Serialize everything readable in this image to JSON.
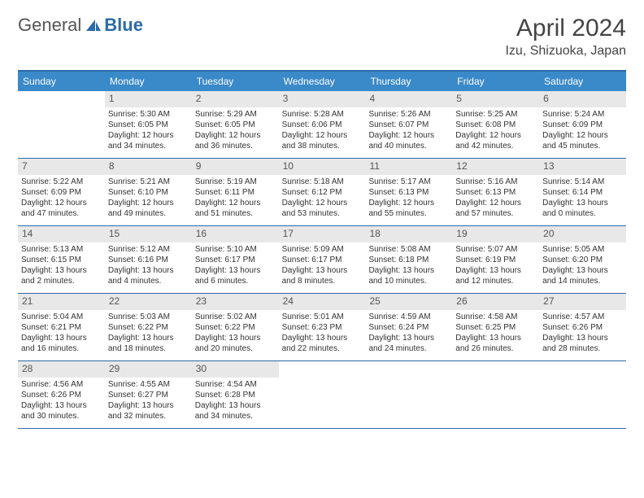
{
  "logo": {
    "text1": "General",
    "text2": "Blue"
  },
  "title": {
    "monthYear": "April 2024",
    "location": "Izu, Shizuoka, Japan"
  },
  "colors": {
    "headerBar": "#3a89c9",
    "borderBlue": "#2d6aa8",
    "dayNumBg": "#e8e8e8",
    "text": "#333333"
  },
  "dayNames": [
    "Sunday",
    "Monday",
    "Tuesday",
    "Wednesday",
    "Thursday",
    "Friday",
    "Saturday"
  ],
  "weeks": [
    [
      null,
      {
        "n": "1",
        "sr": "5:30 AM",
        "ss": "6:05 PM",
        "dl": "12 hours and 34 minutes."
      },
      {
        "n": "2",
        "sr": "5:29 AM",
        "ss": "6:05 PM",
        "dl": "12 hours and 36 minutes."
      },
      {
        "n": "3",
        "sr": "5:28 AM",
        "ss": "6:06 PM",
        "dl": "12 hours and 38 minutes."
      },
      {
        "n": "4",
        "sr": "5:26 AM",
        "ss": "6:07 PM",
        "dl": "12 hours and 40 minutes."
      },
      {
        "n": "5",
        "sr": "5:25 AM",
        "ss": "6:08 PM",
        "dl": "12 hours and 42 minutes."
      },
      {
        "n": "6",
        "sr": "5:24 AM",
        "ss": "6:09 PM",
        "dl": "12 hours and 45 minutes."
      }
    ],
    [
      {
        "n": "7",
        "sr": "5:22 AM",
        "ss": "6:09 PM",
        "dl": "12 hours and 47 minutes."
      },
      {
        "n": "8",
        "sr": "5:21 AM",
        "ss": "6:10 PM",
        "dl": "12 hours and 49 minutes."
      },
      {
        "n": "9",
        "sr": "5:19 AM",
        "ss": "6:11 PM",
        "dl": "12 hours and 51 minutes."
      },
      {
        "n": "10",
        "sr": "5:18 AM",
        "ss": "6:12 PM",
        "dl": "12 hours and 53 minutes."
      },
      {
        "n": "11",
        "sr": "5:17 AM",
        "ss": "6:13 PM",
        "dl": "12 hours and 55 minutes."
      },
      {
        "n": "12",
        "sr": "5:16 AM",
        "ss": "6:13 PM",
        "dl": "12 hours and 57 minutes."
      },
      {
        "n": "13",
        "sr": "5:14 AM",
        "ss": "6:14 PM",
        "dl": "13 hours and 0 minutes."
      }
    ],
    [
      {
        "n": "14",
        "sr": "5:13 AM",
        "ss": "6:15 PM",
        "dl": "13 hours and 2 minutes."
      },
      {
        "n": "15",
        "sr": "5:12 AM",
        "ss": "6:16 PM",
        "dl": "13 hours and 4 minutes."
      },
      {
        "n": "16",
        "sr": "5:10 AM",
        "ss": "6:17 PM",
        "dl": "13 hours and 6 minutes."
      },
      {
        "n": "17",
        "sr": "5:09 AM",
        "ss": "6:17 PM",
        "dl": "13 hours and 8 minutes."
      },
      {
        "n": "18",
        "sr": "5:08 AM",
        "ss": "6:18 PM",
        "dl": "13 hours and 10 minutes."
      },
      {
        "n": "19",
        "sr": "5:07 AM",
        "ss": "6:19 PM",
        "dl": "13 hours and 12 minutes."
      },
      {
        "n": "20",
        "sr": "5:05 AM",
        "ss": "6:20 PM",
        "dl": "13 hours and 14 minutes."
      }
    ],
    [
      {
        "n": "21",
        "sr": "5:04 AM",
        "ss": "6:21 PM",
        "dl": "13 hours and 16 minutes."
      },
      {
        "n": "22",
        "sr": "5:03 AM",
        "ss": "6:22 PM",
        "dl": "13 hours and 18 minutes."
      },
      {
        "n": "23",
        "sr": "5:02 AM",
        "ss": "6:22 PM",
        "dl": "13 hours and 20 minutes."
      },
      {
        "n": "24",
        "sr": "5:01 AM",
        "ss": "6:23 PM",
        "dl": "13 hours and 22 minutes."
      },
      {
        "n": "25",
        "sr": "4:59 AM",
        "ss": "6:24 PM",
        "dl": "13 hours and 24 minutes."
      },
      {
        "n": "26",
        "sr": "4:58 AM",
        "ss": "6:25 PM",
        "dl": "13 hours and 26 minutes."
      },
      {
        "n": "27",
        "sr": "4:57 AM",
        "ss": "6:26 PM",
        "dl": "13 hours and 28 minutes."
      }
    ],
    [
      {
        "n": "28",
        "sr": "4:56 AM",
        "ss": "6:26 PM",
        "dl": "13 hours and 30 minutes."
      },
      {
        "n": "29",
        "sr": "4:55 AM",
        "ss": "6:27 PM",
        "dl": "13 hours and 32 minutes."
      },
      {
        "n": "30",
        "sr": "4:54 AM",
        "ss": "6:28 PM",
        "dl": "13 hours and 34 minutes."
      },
      null,
      null,
      null,
      null
    ]
  ],
  "labels": {
    "sunrise": "Sunrise: ",
    "sunset": "Sunset: ",
    "daylight": "Daylight: "
  }
}
